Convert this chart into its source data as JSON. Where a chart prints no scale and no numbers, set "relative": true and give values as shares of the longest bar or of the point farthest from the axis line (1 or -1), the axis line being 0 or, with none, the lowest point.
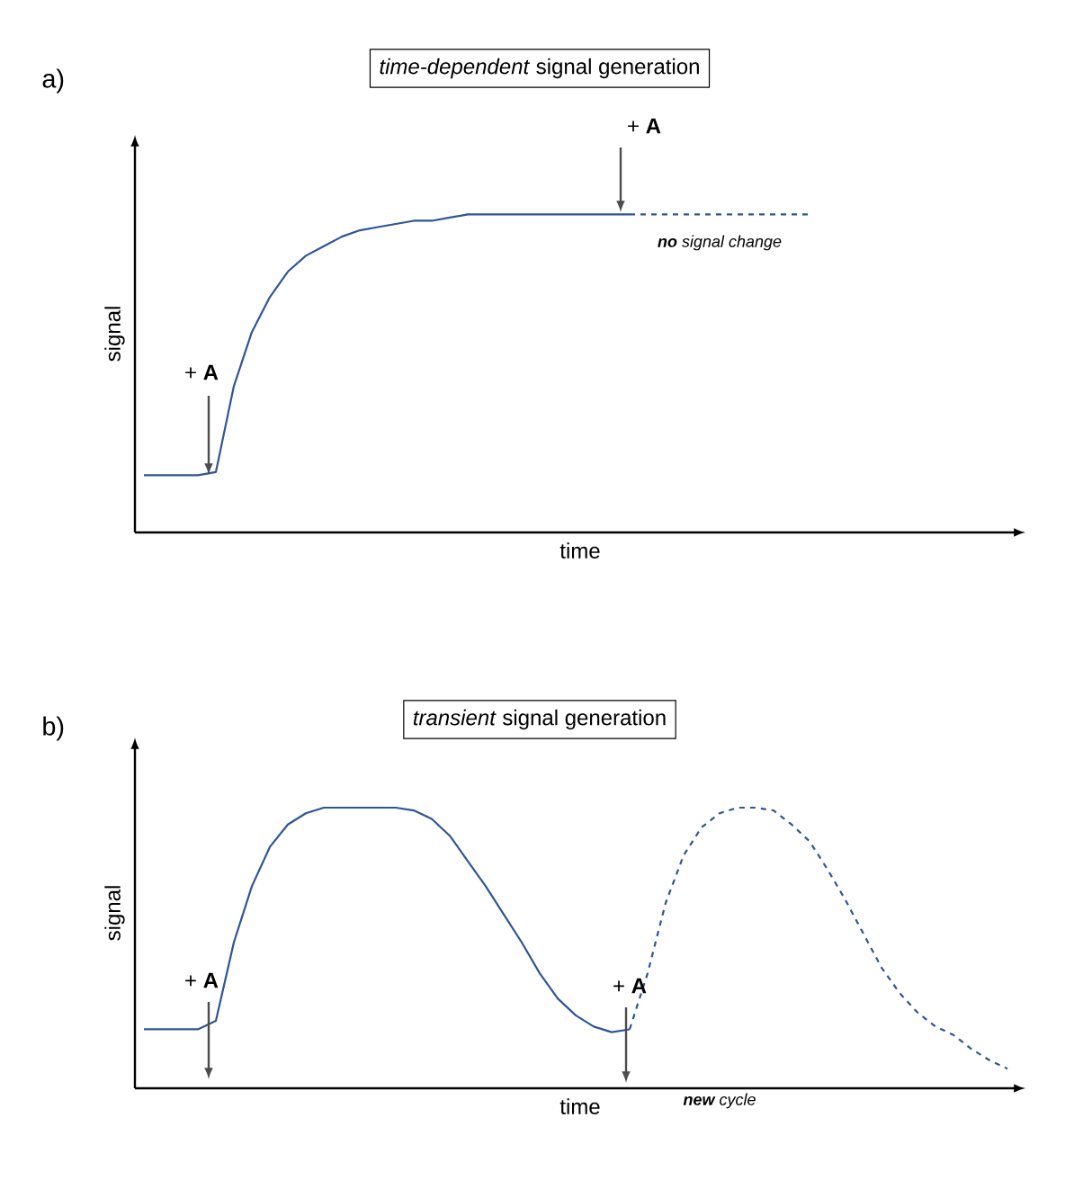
{
  "chart_data": [
    {
      "type": "line",
      "relative": true,
      "title": "*time-dependent* signal generation",
      "xlabel": "time",
      "ylabel": "signal",
      "categories": [
        null,
        null,
        null,
        null,
        null,
        null,
        null,
        null,
        null,
        null,
        null,
        null,
        null,
        null,
        null,
        null,
        null,
        null,
        null,
        null,
        null,
        null,
        null,
        null,
        null,
        null,
        null,
        null,
        null,
        null,
        null,
        null,
        null,
        null,
        null,
        null,
        null,
        null,
        null,
        null,
        null,
        null,
        null,
        null,
        null,
        null,
        null,
        null,
        null
      ],
      "series": [
        {
          "color": "#2f5597",
          "line_style": "solid",
          "values": [
            0.18,
            0.18,
            0.18,
            0.18,
            0.19,
            0.46,
            0.63,
            0.74,
            0.82,
            0.87,
            0.9,
            0.93,
            0.95,
            0.96,
            0.97,
            0.98,
            0.98,
            0.99,
            1.0,
            1.0,
            1.0,
            1.0,
            1.0,
            1.0,
            1.0,
            1.0,
            1.0,
            1.0,
            null,
            null,
            null,
            null,
            null,
            null,
            null,
            null,
            null,
            null,
            null,
            null,
            null,
            null,
            null,
            null,
            null,
            null,
            null,
            null,
            null
          ]
        },
        {
          "color": "#2f5597",
          "line_style": "dashed",
          "values": [
            null,
            null,
            null,
            null,
            null,
            null,
            null,
            null,
            null,
            null,
            null,
            null,
            null,
            null,
            null,
            null,
            null,
            null,
            null,
            null,
            null,
            null,
            null,
            null,
            null,
            null,
            null,
            1.0,
            1.0,
            1.0,
            1.0,
            1.0,
            1.0,
            1.0,
            1.0,
            1.0,
            1.0,
            1.0,
            null,
            null,
            null,
            null,
            null,
            null,
            null,
            null,
            null,
            null,
            null
          ]
        }
      ],
      "annotations": [
        "a)",
        "+ **A**",
        "+ **A**",
        "**no** signal change"
      ]
    },
    {
      "type": "line",
      "relative": true,
      "title": "*transient* signal generation",
      "xlabel": "time",
      "ylabel": "signal",
      "categories": [
        null,
        null,
        null,
        null,
        null,
        null,
        null,
        null,
        null,
        null,
        null,
        null,
        null,
        null,
        null,
        null,
        null,
        null,
        null,
        null,
        null,
        null,
        null,
        null,
        null,
        null,
        null,
        null,
        null,
        null,
        null,
        null,
        null,
        null,
        null,
        null,
        null,
        null,
        null,
        null,
        null,
        null,
        null,
        null,
        null,
        null,
        null,
        null,
        null
      ],
      "series": [
        {
          "color": "#2f5597",
          "line_style": "solid",
          "values": [
            0.21,
            0.21,
            0.21,
            0.21,
            0.24,
            0.52,
            0.72,
            0.86,
            0.94,
            0.98,
            1.0,
            1.0,
            1.0,
            1.0,
            1.0,
            0.99,
            0.96,
            0.9,
            0.81,
            0.72,
            0.62,
            0.52,
            0.41,
            0.32,
            0.26,
            0.22,
            0.2,
            0.21,
            null,
            null,
            null,
            null,
            null,
            null,
            null,
            null,
            null,
            null,
            null,
            null,
            null,
            null,
            null,
            null,
            null,
            null,
            null,
            null,
            null
          ]
        },
        {
          "color": "#2f5597",
          "line_style": "dashed",
          "values": [
            null,
            null,
            null,
            null,
            null,
            null,
            null,
            null,
            null,
            null,
            null,
            null,
            null,
            null,
            null,
            null,
            null,
            null,
            null,
            null,
            null,
            null,
            null,
            null,
            null,
            null,
            null,
            0.21,
            0.41,
            0.66,
            0.83,
            0.93,
            0.98,
            1.0,
            1.0,
            0.99,
            0.94,
            0.88,
            0.78,
            0.67,
            0.55,
            0.43,
            0.34,
            0.27,
            0.22,
            0.19,
            0.14,
            0.1,
            0.07
          ]
        }
      ],
      "annotations": [
        "b)",
        "+ **A**",
        "+ **A**",
        "**new** cycle"
      ]
    }
  ]
}
